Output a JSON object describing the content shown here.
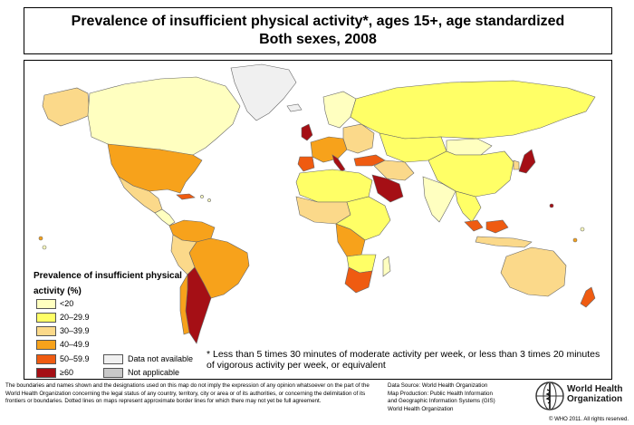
{
  "title": {
    "line1": "Prevalence of insufficient physical activity*, ages 15+, age standardized",
    "line2": "Both sexes, 2008"
  },
  "legend": {
    "title": "Prevalence of insufficient physical activity (%)",
    "classes": [
      {
        "label": "<20",
        "color": "#ffffc0"
      },
      {
        "label": "20–29.9",
        "color": "#ffff66"
      },
      {
        "label": "30–39.9",
        "color": "#fbd98a"
      },
      {
        "label": "40–49.9",
        "color": "#f7a21b"
      },
      {
        "label": "50–59.9",
        "color": "#ef5b11"
      },
      {
        "label": "≥60",
        "color": "#a50f15"
      }
    ],
    "other": [
      {
        "label": "Data not available",
        "color": "#f0f0f0"
      },
      {
        "label": "Not applicable",
        "color": "#c8c8c8"
      }
    ]
  },
  "footnote": "* Less than 5 times 30 minutes of moderate activity per week, or less than 3 times 20 minutes of vigorous activity per week, or equivalent",
  "disclaimer": "The boundaries and names shown and the designations used on this map do not imply the expression of any opinion whatsoever on the part of the World Health Organization concerning the legal status of any country, territory, city or area or of its authorities, or concerning the delimitation of its frontiers or boundaries. Dotted lines on maps represent approximate border lines for which there may not yet be full agreement.",
  "source": {
    "line1": "Data Source: World Health Organization",
    "line2": "Map Production: Public Health Information",
    "line3": "and Geographic Information Systems (GIS)",
    "line4": "World Health Organization"
  },
  "organization": {
    "line1": "World Health",
    "line2": "Organization"
  },
  "copyright": "© WHO 2011. All rights reserved.",
  "colors": {
    "lt20": "#ffffc0",
    "c20_29": "#ffff66",
    "c30_39": "#fbd98a",
    "c40_49": "#f7a21b",
    "c50_59": "#ef5b11",
    "gte60": "#a50f15",
    "no_data": "#f0f0f0",
    "not_applicable": "#c8c8c8"
  }
}
